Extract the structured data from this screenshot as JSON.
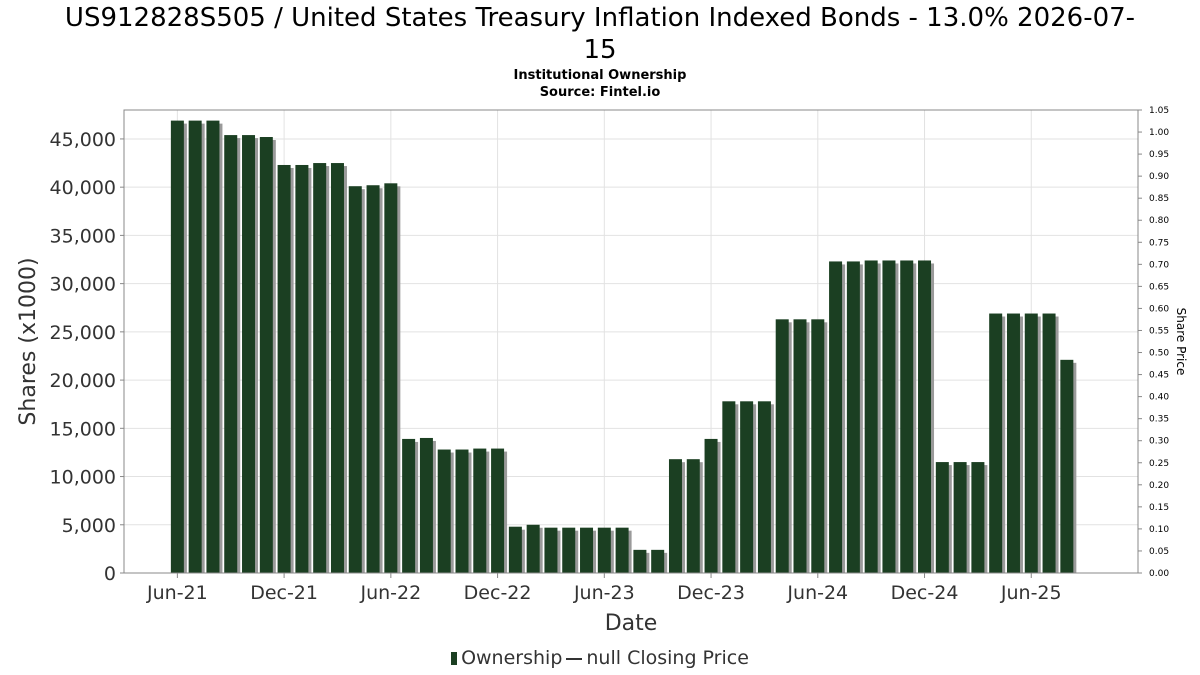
{
  "title": "US912828S505 / United States Treasury Inflation Indexed Bonds - 13.0% 2026-07-15",
  "title_line1": "US912828S505 / United States Treasury Inflation Indexed Bonds - 13.0% 2026-07-",
  "title_line2": "15",
  "subtitle": "Institutional Ownership",
  "source": "Source: Fintel.io",
  "legend": {
    "ownership": "Ownership",
    "price": "null Closing Price"
  },
  "colors": {
    "bar": "#1b3f22",
    "bar_shadow": "#9a9a9a",
    "grid": "#e2e2e2",
    "axis": "#888888"
  },
  "chart_data": {
    "type": "bar",
    "xlabel": "Date",
    "ylabel": "Shares (x1000)",
    "y2label": "Share Price",
    "ylim": [
      0,
      48000
    ],
    "y2lim": [
      0,
      1.05
    ],
    "yticks": [
      0,
      5000,
      10000,
      15000,
      20000,
      25000,
      30000,
      35000,
      40000,
      45000
    ],
    "ytick_labels": [
      "0",
      "5,000",
      "10,000",
      "15,000",
      "20,000",
      "25,000",
      "30,000",
      "35,000",
      "40,000",
      "45,000"
    ],
    "y2ticks": [
      0.0,
      0.05,
      0.1,
      0.15,
      0.2,
      0.25,
      0.3,
      0.35,
      0.4,
      0.45,
      0.5,
      0.55,
      0.6,
      0.65,
      0.7,
      0.75,
      0.8,
      0.85,
      0.9,
      0.95,
      1.0,
      1.05
    ],
    "y2tick_labels": [
      "0.00",
      "0.05",
      "0.10",
      "0.15",
      "0.20",
      "0.25",
      "0.30",
      "0.35",
      "0.40",
      "0.45",
      "0.50",
      "0.55",
      "0.60",
      "0.65",
      "0.70",
      "0.75",
      "0.80",
      "0.85",
      "0.90",
      "0.95",
      "1.00",
      "1.05"
    ],
    "xticks": [
      "Jun-21",
      "Dec-21",
      "Jun-22",
      "Dec-22",
      "Jun-23",
      "Dec-23",
      "Jun-24",
      "Dec-24",
      "Jun-25"
    ],
    "xtick_months": [
      0,
      6,
      12,
      18,
      24,
      30,
      36,
      42,
      48
    ],
    "month_range": [
      -3,
      54
    ],
    "bar_months": [
      0,
      1,
      2,
      3,
      4,
      5,
      6,
      7,
      8,
      9,
      10,
      11,
      12,
      13,
      14,
      15,
      16,
      17,
      18,
      19,
      20,
      21,
      22,
      23,
      24,
      25,
      26,
      27,
      28,
      29,
      30,
      31,
      32,
      33,
      34,
      35,
      36,
      37,
      38,
      39,
      40,
      41,
      42,
      43,
      44,
      45,
      46,
      47,
      48,
      49,
      50
    ],
    "series": [
      {
        "name": "Ownership",
        "values": [
          46900,
          46900,
          46900,
          45400,
          45400,
          45200,
          42300,
          42300,
          42500,
          42500,
          40100,
          40200,
          40400,
          13900,
          14000,
          12800,
          12800,
          12900,
          12900,
          4800,
          5000,
          4700,
          4700,
          4700,
          4700,
          4700,
          2400,
          2400,
          11800,
          11800,
          13900,
          17800,
          17800,
          17800,
          26300,
          26300,
          26300,
          32300,
          32300,
          32400,
          32400,
          32400,
          32400,
          11500,
          11500,
          11500,
          26900,
          26900,
          26900,
          26900,
          22100
        ]
      }
    ]
  }
}
